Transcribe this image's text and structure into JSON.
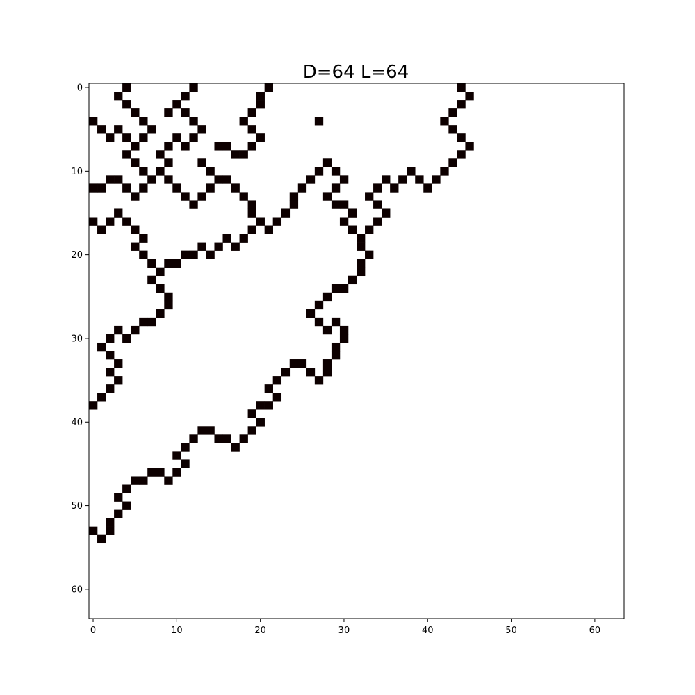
{
  "chart_data": {
    "type": "heatmap",
    "title": "D=64 L=64",
    "xlabel": "",
    "ylabel": "",
    "grid_size": [
      64,
      64
    ],
    "xlim": [
      -0.5,
      63.5
    ],
    "ylim": [
      63.5,
      -0.5
    ],
    "x_ticks": [
      0,
      10,
      20,
      30,
      40,
      50,
      60
    ],
    "y_ticks": [
      0,
      10,
      20,
      30,
      40,
      50,
      60
    ],
    "grid": false,
    "colors": {
      "filled": "#0d0000",
      "empty": "#ffffff"
    },
    "filled_cells": [
      [
        0,
        4
      ],
      [
        0,
        12
      ],
      [
        0,
        21
      ],
      [
        0,
        44
      ],
      [
        1,
        3
      ],
      [
        1,
        11
      ],
      [
        1,
        20
      ],
      [
        1,
        45
      ],
      [
        2,
        4
      ],
      [
        2,
        10
      ],
      [
        2,
        20
      ],
      [
        2,
        44
      ],
      [
        3,
        5
      ],
      [
        3,
        9
      ],
      [
        3,
        11
      ],
      [
        3,
        19
      ],
      [
        3,
        43
      ],
      [
        4,
        0
      ],
      [
        4,
        6
      ],
      [
        4,
        12
      ],
      [
        4,
        18
      ],
      [
        4,
        27
      ],
      [
        4,
        42
      ],
      [
        5,
        1
      ],
      [
        5,
        3
      ],
      [
        5,
        7
      ],
      [
        5,
        13
      ],
      [
        5,
        19
      ],
      [
        5,
        43
      ],
      [
        6,
        2
      ],
      [
        6,
        4
      ],
      [
        6,
        6
      ],
      [
        6,
        10
      ],
      [
        6,
        12
      ],
      [
        6,
        20
      ],
      [
        6,
        44
      ],
      [
        7,
        5
      ],
      [
        7,
        9
      ],
      [
        7,
        11
      ],
      [
        7,
        15
      ],
      [
        7,
        16
      ],
      [
        7,
        19
      ],
      [
        7,
        45
      ],
      [
        8,
        4
      ],
      [
        8,
        8
      ],
      [
        8,
        17
      ],
      [
        8,
        18
      ],
      [
        8,
        44
      ],
      [
        9,
        5
      ],
      [
        9,
        9
      ],
      [
        9,
        13
      ],
      [
        9,
        28
      ],
      [
        9,
        43
      ],
      [
        10,
        6
      ],
      [
        10,
        8
      ],
      [
        10,
        14
      ],
      [
        10,
        27
      ],
      [
        10,
        29
      ],
      [
        10,
        38
      ],
      [
        10,
        42
      ],
      [
        11,
        2
      ],
      [
        11,
        3
      ],
      [
        11,
        7
      ],
      [
        11,
        9
      ],
      [
        11,
        15
      ],
      [
        11,
        16
      ],
      [
        11,
        26
      ],
      [
        11,
        30
      ],
      [
        11,
        35
      ],
      [
        11,
        37
      ],
      [
        11,
        39
      ],
      [
        11,
        41
      ],
      [
        12,
        0
      ],
      [
        12,
        1
      ],
      [
        12,
        4
      ],
      [
        12,
        6
      ],
      [
        12,
        10
      ],
      [
        12,
        14
      ],
      [
        12,
        17
      ],
      [
        12,
        25
      ],
      [
        12,
        29
      ],
      [
        12,
        34
      ],
      [
        12,
        36
      ],
      [
        12,
        40
      ],
      [
        13,
        5
      ],
      [
        13,
        11
      ],
      [
        13,
        13
      ],
      [
        13,
        18
      ],
      [
        13,
        24
      ],
      [
        13,
        28
      ],
      [
        13,
        33
      ],
      [
        14,
        12
      ],
      [
        14,
        19
      ],
      [
        14,
        24
      ],
      [
        14,
        29
      ],
      [
        14,
        30
      ],
      [
        14,
        34
      ],
      [
        15,
        3
      ],
      [
        15,
        19
      ],
      [
        15,
        23
      ],
      [
        15,
        31
      ],
      [
        15,
        35
      ],
      [
        16,
        0
      ],
      [
        16,
        2
      ],
      [
        16,
        4
      ],
      [
        16,
        20
      ],
      [
        16,
        22
      ],
      [
        16,
        30
      ],
      [
        16,
        34
      ],
      [
        17,
        1
      ],
      [
        17,
        5
      ],
      [
        17,
        19
      ],
      [
        17,
        21
      ],
      [
        17,
        31
      ],
      [
        17,
        33
      ],
      [
        18,
        6
      ],
      [
        18,
        16
      ],
      [
        18,
        18
      ],
      [
        18,
        32
      ],
      [
        19,
        5
      ],
      [
        19,
        13
      ],
      [
        19,
        15
      ],
      [
        19,
        17
      ],
      [
        19,
        32
      ],
      [
        20,
        6
      ],
      [
        20,
        11
      ],
      [
        20,
        12
      ],
      [
        20,
        14
      ],
      [
        20,
        33
      ],
      [
        21,
        7
      ],
      [
        21,
        9
      ],
      [
        21,
        10
      ],
      [
        21,
        32
      ],
      [
        22,
        8
      ],
      [
        22,
        32
      ],
      [
        23,
        7
      ],
      [
        23,
        31
      ],
      [
        24,
        8
      ],
      [
        24,
        29
      ],
      [
        24,
        30
      ],
      [
        25,
        9
      ],
      [
        25,
        28
      ],
      [
        26,
        9
      ],
      [
        26,
        27
      ],
      [
        27,
        8
      ],
      [
        27,
        26
      ],
      [
        28,
        6
      ],
      [
        28,
        7
      ],
      [
        28,
        27
      ],
      [
        28,
        29
      ],
      [
        29,
        3
      ],
      [
        29,
        5
      ],
      [
        29,
        28
      ],
      [
        29,
        30
      ],
      [
        30,
        2
      ],
      [
        30,
        4
      ],
      [
        30,
        30
      ],
      [
        31,
        1
      ],
      [
        31,
        29
      ],
      [
        32,
        2
      ],
      [
        32,
        29
      ],
      [
        33,
        3
      ],
      [
        33,
        24
      ],
      [
        33,
        25
      ],
      [
        33,
        28
      ],
      [
        34,
        2
      ],
      [
        34,
        23
      ],
      [
        34,
        26
      ],
      [
        34,
        28
      ],
      [
        35,
        3
      ],
      [
        35,
        22
      ],
      [
        35,
        27
      ],
      [
        36,
        2
      ],
      [
        36,
        21
      ],
      [
        37,
        1
      ],
      [
        37,
        22
      ],
      [
        38,
        0
      ],
      [
        38,
        20
      ],
      [
        38,
        21
      ],
      [
        39,
        19
      ],
      [
        40,
        20
      ],
      [
        41,
        13
      ],
      [
        41,
        14
      ],
      [
        41,
        19
      ],
      [
        42,
        12
      ],
      [
        42,
        15
      ],
      [
        42,
        16
      ],
      [
        42,
        18
      ],
      [
        43,
        11
      ],
      [
        43,
        17
      ],
      [
        44,
        10
      ],
      [
        45,
        11
      ],
      [
        46,
        7
      ],
      [
        46,
        8
      ],
      [
        46,
        10
      ],
      [
        47,
        5
      ],
      [
        47,
        6
      ],
      [
        47,
        9
      ],
      [
        48,
        4
      ],
      [
        49,
        3
      ],
      [
        50,
        4
      ],
      [
        51,
        3
      ],
      [
        52,
        2
      ],
      [
        53,
        0
      ],
      [
        53,
        2
      ],
      [
        54,
        1
      ]
    ]
  }
}
